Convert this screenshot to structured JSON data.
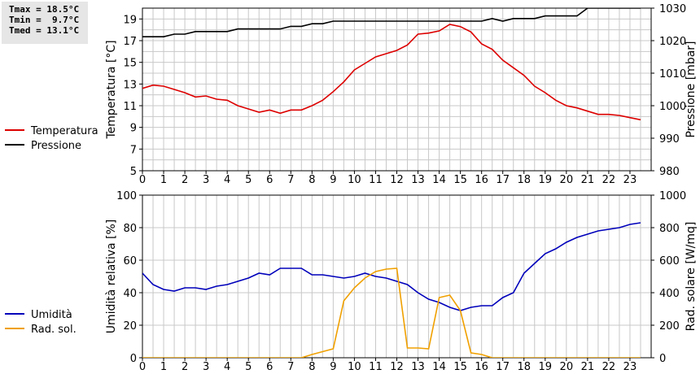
{
  "stats": {
    "tmax": "Tmax = 18.5°C",
    "tmin": "Tmin =  9.7°C",
    "tmed": "Tmed = 13.1°C"
  },
  "colors": {
    "temperature": "#dd0000",
    "pressure": "#000000",
    "humidity": "#0000bb",
    "radiation": "#f0a000",
    "grid": "#c8c8c8"
  },
  "chart_data": [
    {
      "type": "line",
      "xlabel": "",
      "xlim": [
        0,
        24
      ],
      "xticks": [
        "0",
        "1",
        "2",
        "3",
        "4",
        "5",
        "6",
        "7",
        "8",
        "9",
        "10",
        "11",
        "12",
        "13",
        "14",
        "15",
        "16",
        "17",
        "18",
        "19",
        "20",
        "21",
        "22",
        "23"
      ],
      "ylabel": "Temperatura [°C]",
      "ylim": [
        5,
        20
      ],
      "yticks": [
        "5",
        "7",
        "9",
        "11",
        "13",
        "15",
        "17",
        "19"
      ],
      "y2label": "Pressione [mbar]",
      "y2lim": [
        980,
        1030
      ],
      "y2ticks": [
        "980",
        "990",
        "1000",
        "1010",
        "1020",
        "1030"
      ],
      "grid": true,
      "legend_position": "left",
      "series": [
        {
          "name": "Temperatura",
          "axis": "left",
          "x": [
            0,
            0.5,
            1,
            1.5,
            2,
            2.5,
            3,
            3.5,
            4,
            4.5,
            5,
            5.5,
            6,
            6.5,
            7,
            7.5,
            8,
            8.5,
            9,
            9.5,
            10,
            10.5,
            11,
            11.5,
            12,
            12.5,
            13,
            13.5,
            14,
            14.5,
            15,
            15.5,
            16,
            16.5,
            17,
            17.5,
            18,
            18.5,
            19,
            19.5,
            20,
            20.5,
            21,
            21.5,
            22,
            22.5,
            23,
            23.5
          ],
          "y": [
            12.6,
            12.9,
            12.8,
            12.5,
            12.2,
            11.8,
            11.9,
            11.6,
            11.5,
            11.0,
            10.7,
            10.4,
            10.6,
            10.3,
            10.6,
            10.6,
            11.0,
            11.5,
            12.3,
            13.2,
            14.3,
            14.9,
            15.5,
            15.8,
            16.1,
            16.6,
            17.6,
            17.7,
            17.9,
            18.5,
            18.3,
            17.8,
            16.7,
            16.2,
            15.2,
            14.5,
            13.8,
            12.8,
            12.2,
            11.5,
            11.0,
            10.8,
            10.5,
            10.2,
            10.2,
            10.1,
            9.9,
            9.7
          ]
        },
        {
          "name": "Pressione",
          "axis": "right",
          "x": [
            0,
            0.5,
            1,
            1.5,
            2,
            2.5,
            3,
            3.5,
            4,
            4.5,
            5,
            5.5,
            6,
            6.5,
            7,
            7.5,
            8,
            8.5,
            9,
            9.5,
            10,
            10.5,
            11,
            11.5,
            12,
            12.5,
            13,
            13.5,
            14,
            14.5,
            15,
            15.5,
            16,
            16.5,
            17,
            17.5,
            18,
            18.5,
            19,
            19.5,
            20,
            20.5,
            21,
            21.5,
            22,
            22.5,
            23,
            23.5
          ],
          "y": [
            1021.2,
            1021.2,
            1021.2,
            1022.0,
            1022.0,
            1022.8,
            1022.8,
            1022.8,
            1022.8,
            1023.6,
            1023.6,
            1023.6,
            1023.6,
            1023.6,
            1024.4,
            1024.4,
            1025.2,
            1025.2,
            1026.0,
            1026.0,
            1026.0,
            1026.0,
            1026.0,
            1026.0,
            1026.0,
            1026.0,
            1026.0,
            1026.0,
            1026.0,
            1026.0,
            1026.0,
            1026.0,
            1026.0,
            1026.8,
            1026.0,
            1026.8,
            1026.8,
            1026.8,
            1027.6,
            1027.6,
            1027.6,
            1027.6,
            1030.0,
            1030.0,
            1030.0,
            1030.0,
            1030.0,
            1030.0
          ]
        }
      ]
    },
    {
      "type": "line",
      "xlabel": "",
      "xlim": [
        0,
        24
      ],
      "xticks": [
        "0",
        "1",
        "2",
        "3",
        "4",
        "5",
        "6",
        "7",
        "8",
        "9",
        "10",
        "11",
        "12",
        "13",
        "14",
        "15",
        "16",
        "17",
        "18",
        "19",
        "20",
        "21",
        "22",
        "23"
      ],
      "ylabel": "Umidità relativa [%]",
      "ylim": [
        0,
        100
      ],
      "yticks": [
        "0",
        "20",
        "40",
        "60",
        "80",
        "100"
      ],
      "y2label": "Rad. solare [W/mq]",
      "y2lim": [
        0,
        1000
      ],
      "y2ticks": [
        "0",
        "200",
        "400",
        "600",
        "800",
        "1000"
      ],
      "grid": true,
      "legend_position": "left",
      "series": [
        {
          "name": "Umidità",
          "axis": "left",
          "x": [
            0,
            0.5,
            1,
            1.5,
            2,
            2.5,
            3,
            3.5,
            4,
            4.5,
            5,
            5.5,
            6,
            6.5,
            7,
            7.5,
            8,
            8.5,
            9,
            9.5,
            10,
            10.5,
            11,
            11.5,
            12,
            12.5,
            13,
            13.5,
            14,
            14.5,
            15,
            15.5,
            16,
            16.5,
            17,
            17.5,
            18,
            18.5,
            19,
            19.5,
            20,
            20.5,
            21,
            21.5,
            22,
            22.5,
            23,
            23.5
          ],
          "y": [
            52,
            45,
            42,
            41,
            43,
            43,
            42,
            44,
            45,
            47,
            49,
            52,
            51,
            55,
            55,
            55,
            51,
            51,
            50,
            49,
            50,
            52,
            50,
            49,
            47,
            45,
            40,
            36,
            34,
            31,
            29,
            31,
            32,
            32,
            37,
            40,
            52,
            58,
            64,
            67,
            71,
            74,
            76,
            78,
            79,
            80,
            82,
            83
          ]
        },
        {
          "name": "Rad. sol.",
          "axis": "right",
          "x": [
            0,
            1,
            2,
            3,
            4,
            5,
            6,
            7,
            7.5,
            8,
            9,
            9.5,
            10,
            10.5,
            11,
            11.5,
            12,
            12.5,
            13,
            13.5,
            14,
            14.5,
            15,
            15.5,
            16,
            16.5,
            17,
            18,
            19,
            20,
            21,
            22,
            23,
            23.5
          ],
          "y": [
            0,
            0,
            0,
            0,
            0,
            0,
            0,
            0,
            0,
            20,
            55,
            350,
            430,
            490,
            530,
            545,
            550,
            60,
            60,
            55,
            370,
            385,
            290,
            30,
            20,
            0,
            0,
            0,
            0,
            0,
            0,
            0,
            0,
            0
          ]
        }
      ]
    }
  ]
}
